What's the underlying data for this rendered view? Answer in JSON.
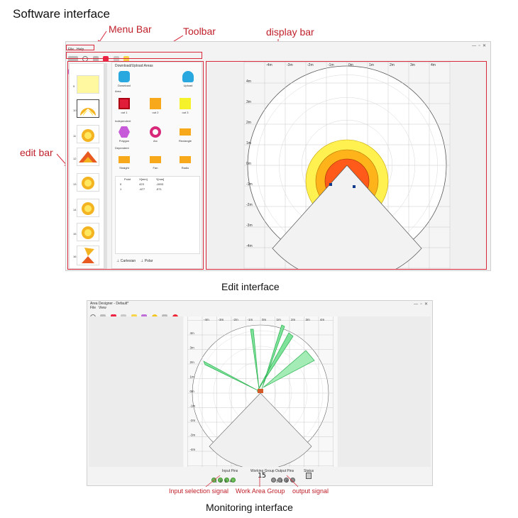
{
  "page": {
    "title": "Software interface"
  },
  "annotations": {
    "menu_bar": "Menu Bar",
    "toolbar": "Toolbar",
    "display_bar": "display bar",
    "edit_bar": "edit bar",
    "input_signal": "Input selection signal",
    "work_area_group": "Work Area Group",
    "output_signal": "output signal"
  },
  "captions": {
    "edit": "Edit interface",
    "monitoring": "Monitoring interface"
  },
  "edit_window": {
    "menu": {
      "file": "File",
      "help": "Help"
    },
    "panel_title": "Download/Upload Areas",
    "download": "Download",
    "upload": "Upload",
    "areas_label": "Area",
    "area_items": [
      "out 1",
      "out 2",
      "out 3"
    ],
    "independent_label": "Independent",
    "independent_items": [
      "Polygon",
      "Arc",
      "Rectangle"
    ],
    "dependent_label": "Dependent",
    "dependent_items": [
      "Straight",
      "Fan",
      "Radio"
    ],
    "table": {
      "headers": [
        "Point",
        "X[mm]",
        "Y[mm]"
      ],
      "rows": [
        [
          "0",
          "423",
          "-1593"
        ],
        [
          "1",
          "-677",
          "-971"
        ]
      ]
    },
    "tabs": [
      "Cartesian",
      "Polar"
    ],
    "item_numbers": [
      "9",
      "10",
      "11",
      "12",
      "13",
      "14",
      "15",
      "16"
    ],
    "x_ticks": [
      "-4m",
      "-3m",
      "-2m",
      "-1m",
      "0m",
      "1m",
      "2m",
      "3m",
      "4m"
    ],
    "y_ticks": [
      "4m",
      "3m",
      "2m",
      "1m",
      "0m",
      "-1m",
      "-2m",
      "-3m",
      "-4m"
    ],
    "zone_colors": {
      "outer": "#fff250",
      "middle": "#ffb31a",
      "inner": "#ff5a1a"
    }
  },
  "monitor_window": {
    "title": "Area Designer - Default*",
    "menu": {
      "file": "File",
      "view": "View"
    },
    "x_ticks": [
      "-4m",
      "-3m",
      "-2m",
      "-1m",
      "0m",
      "1m",
      "2m",
      "3m",
      "4m"
    ],
    "y_ticks": [
      "4m",
      "3m",
      "2m",
      "1m",
      "0m",
      "-1m",
      "-2m",
      "-3m",
      "-4m"
    ],
    "status": {
      "input_label": "Input Pins",
      "group_label": "Working Group",
      "output_label": "Output Pins",
      "state_label": "Status",
      "input_numbers": [
        "1",
        "2",
        "3",
        "4"
      ],
      "output_numbers": [
        "1",
        "2",
        "3"
      ],
      "group_value": "15"
    }
  }
}
